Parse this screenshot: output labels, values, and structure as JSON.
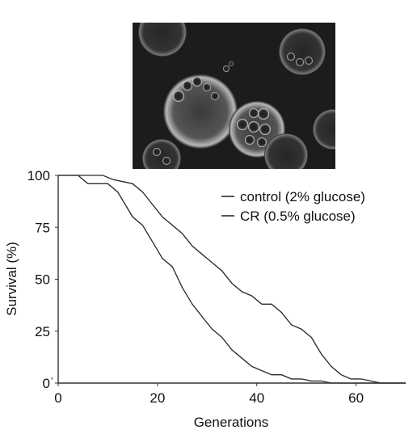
{
  "figure": {
    "image": {
      "description": "fluorescence micrograph of yeast cells",
      "background_color": "#1c1c1c"
    }
  },
  "chart_data": {
    "type": "line",
    "title": "",
    "xlabel": "Generations",
    "ylabel": "Survival (%)",
    "xlim": [
      0,
      70
    ],
    "ylim": [
      0,
      100
    ],
    "x_ticks": [
      0,
      20,
      40,
      60
    ],
    "y_ticks": [
      0,
      25,
      50,
      75,
      100
    ],
    "x_tick_labels": [
      "0",
      "20",
      "40",
      "60"
    ],
    "y_tick_labels": [
      "0",
      "25",
      "50",
      "75",
      "100"
    ],
    "y_zero_marker": "°",
    "grid": false,
    "legend_position": "top-right",
    "series": [
      {
        "name": "control (2% glucose)",
        "color": "#2b2b2b",
        "x": [
          0,
          4,
          6,
          10,
          12,
          14,
          15,
          17,
          19,
          21,
          23,
          25,
          27,
          29,
          31,
          33,
          35,
          37,
          39,
          41,
          43,
          45,
          47,
          49,
          51,
          53,
          55,
          57,
          58,
          60,
          70
        ],
        "y": [
          100,
          100,
          96,
          96,
          92,
          84,
          80,
          76,
          68,
          60,
          56,
          46,
          38,
          32,
          26,
          22,
          16,
          12,
          8,
          6,
          4,
          4,
          2,
          2,
          1,
          1,
          0,
          0,
          0,
          0,
          0
        ]
      },
      {
        "name": "CR (0.5% glucose)",
        "color": "#2b2b2b",
        "x": [
          0,
          9,
          11,
          13,
          15,
          17,
          19,
          21,
          23,
          25,
          27,
          29,
          31,
          33,
          35,
          37,
          39,
          41,
          43,
          45,
          47,
          49,
          51,
          53,
          55,
          57,
          59,
          61,
          63,
          65,
          66,
          70
        ],
        "y": [
          100,
          100,
          98,
          97,
          96,
          92,
          86,
          80,
          76,
          72,
          66,
          62,
          58,
          54,
          48,
          44,
          42,
          38,
          38,
          34,
          28,
          26,
          22,
          14,
          8,
          4,
          2,
          2,
          1,
          0,
          0,
          0
        ]
      }
    ]
  }
}
